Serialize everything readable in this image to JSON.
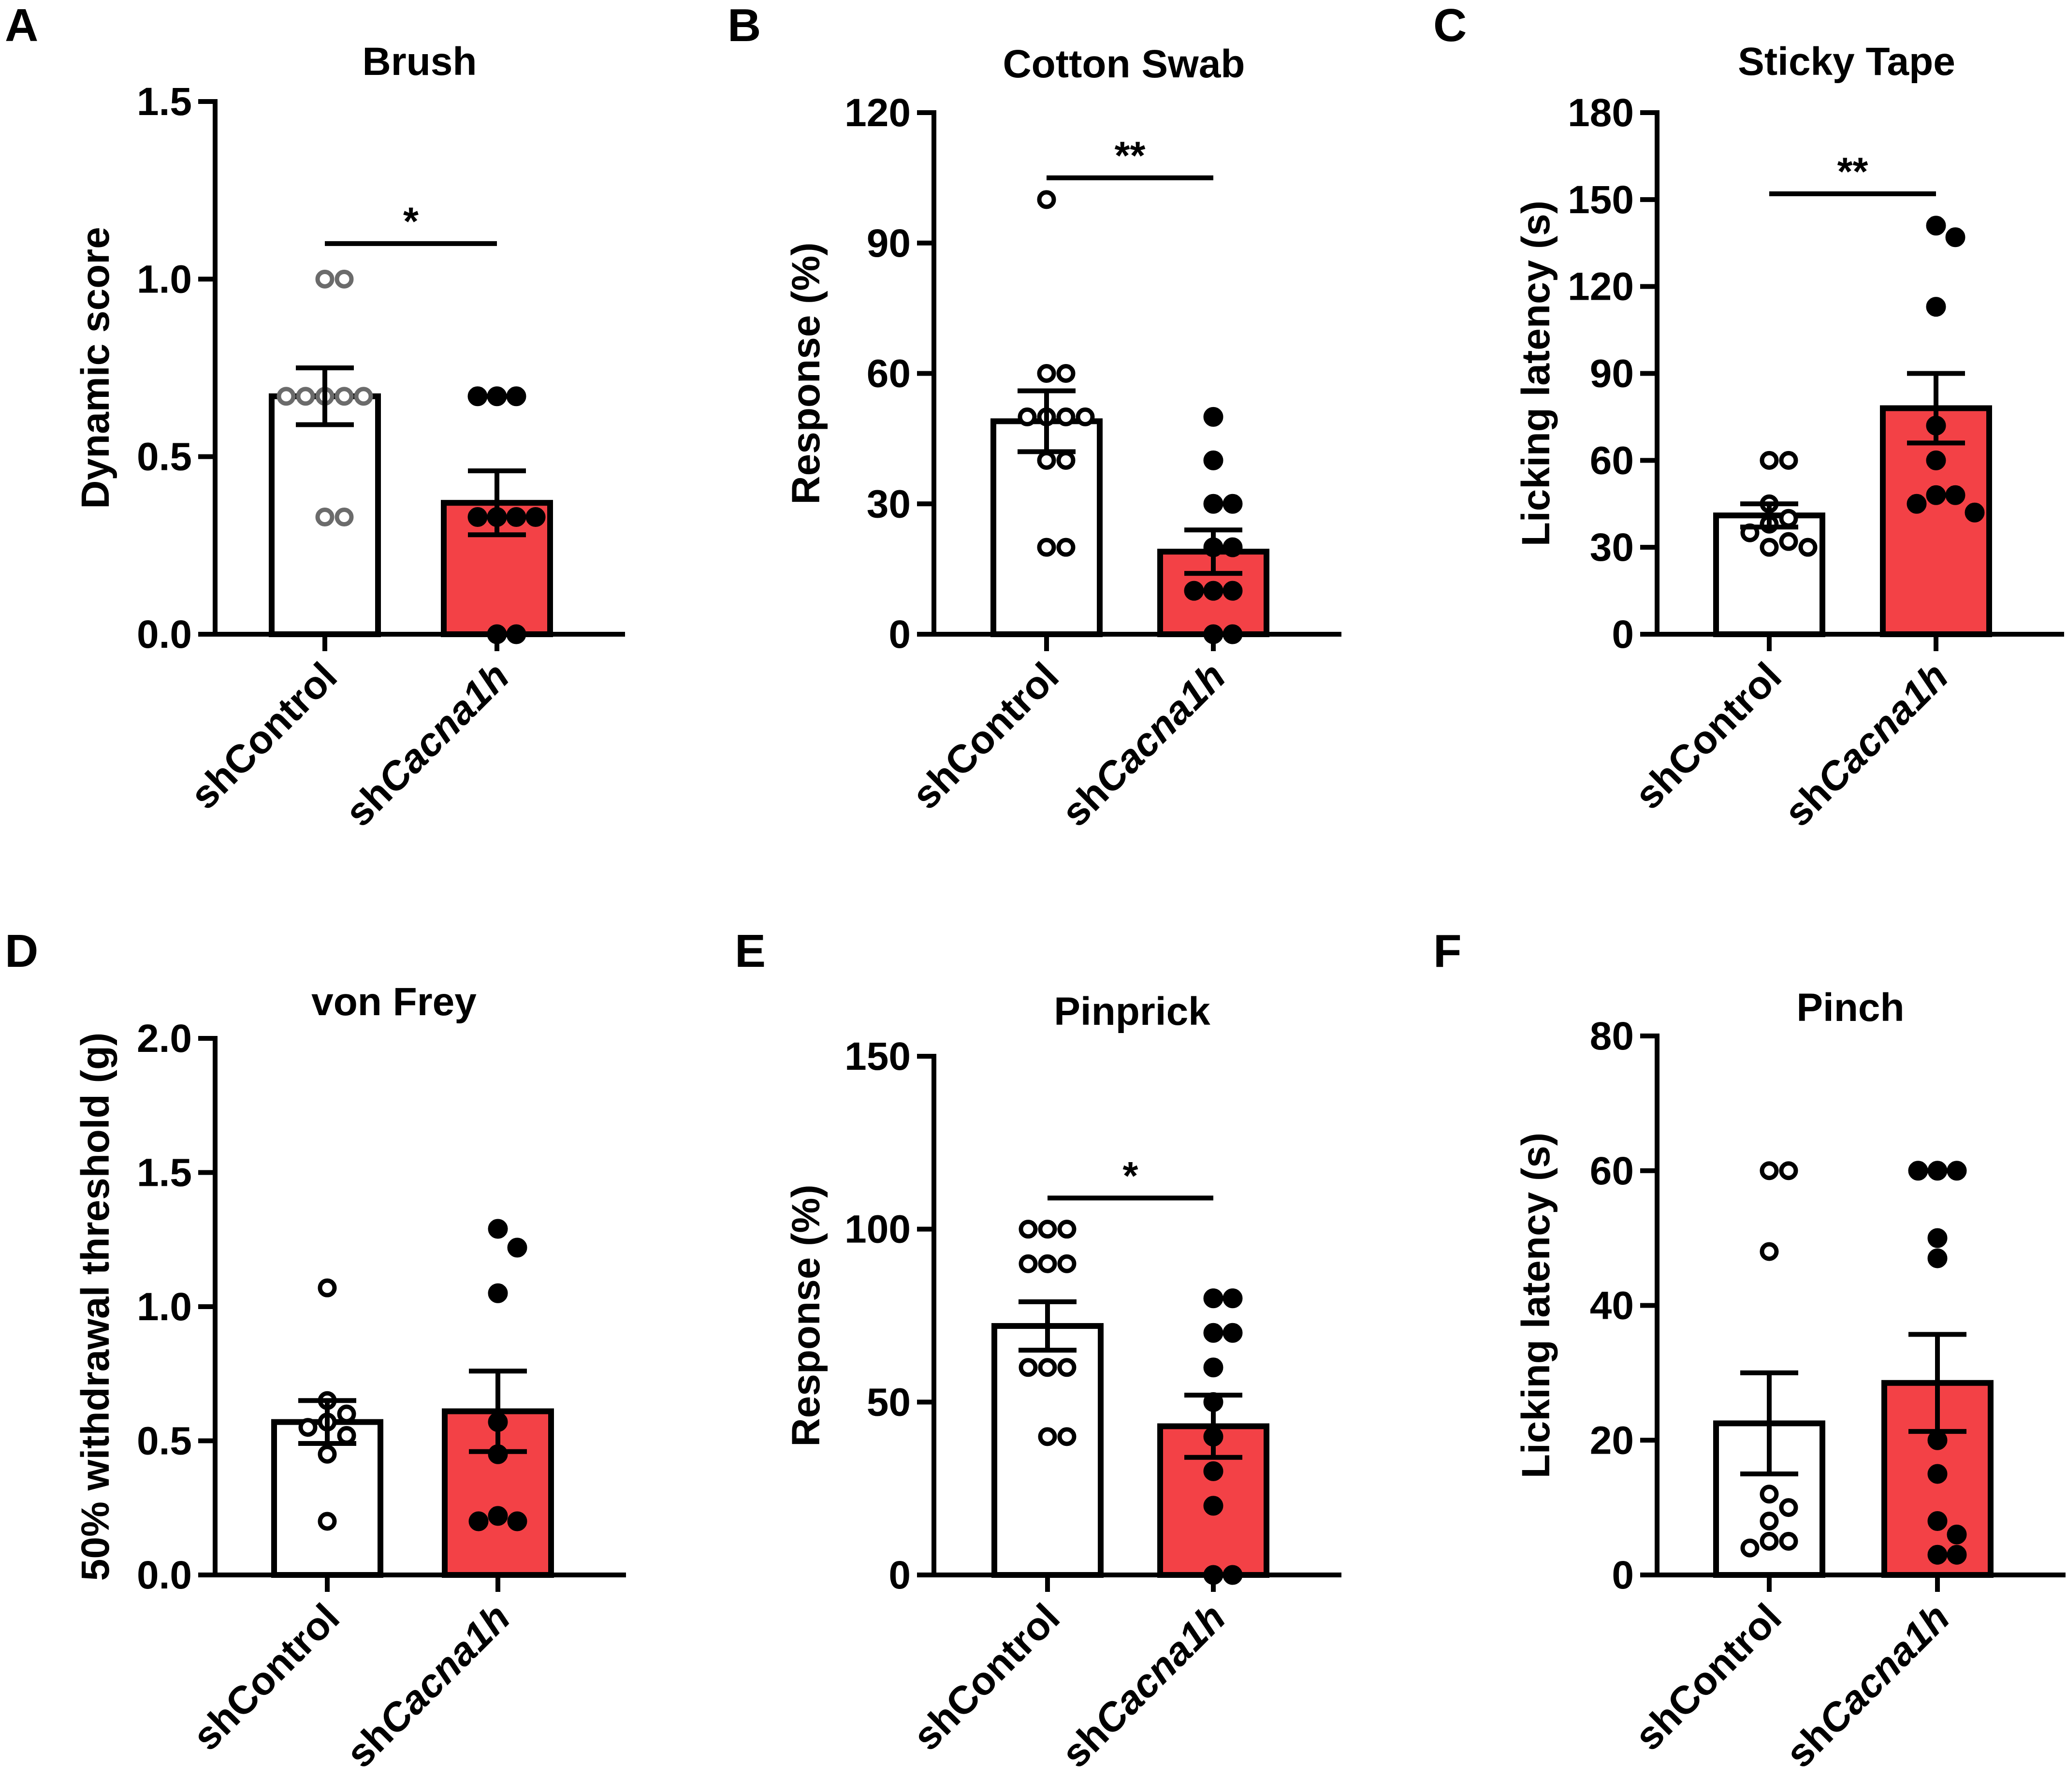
{
  "colors": {
    "control_fill": "#ffffff",
    "treatment_fill": "#f34146",
    "control_point_gray": "#6b6b6b",
    "ink": "#000000"
  },
  "chart_data": [
    {
      "letter": "A",
      "type": "bar",
      "title": "Brush",
      "ylabel": "Dynamic score",
      "ylim": [
        0,
        1.5
      ],
      "yticks": [
        "0.0",
        "0.5",
        "1.0",
        "1.5"
      ],
      "categories": [
        "shControl",
        "shCacna1h"
      ],
      "category_labels": [
        {
          "prefix": "shControl",
          "italic": ""
        },
        {
          "prefix": "sh",
          "italic": "Cacna1h"
        }
      ],
      "means": [
        0.67,
        0.37
      ],
      "sem": [
        0.08,
        0.09
      ],
      "points": [
        [
          1.0,
          1.0,
          0.67,
          0.67,
          0.67,
          0.67,
          0.67,
          0.33,
          0.33
        ],
        [
          0.67,
          0.67,
          0.67,
          0.33,
          0.33,
          0.33,
          0.33,
          0.0,
          0.0
        ]
      ],
      "control_point_color": "#6b6b6b",
      "significance": {
        "label": "*",
        "y": 1.1
      }
    },
    {
      "letter": "B",
      "type": "bar",
      "title": "Cotton Swab",
      "ylabel": "Response (%)",
      "ylim": [
        0,
        120
      ],
      "yticks": [
        "0",
        "30",
        "60",
        "90",
        "120"
      ],
      "categories": [
        "shControl",
        "shCacna1h"
      ],
      "category_labels": [
        {
          "prefix": "shControl",
          "italic": ""
        },
        {
          "prefix": "sh",
          "italic": "Cacna1h"
        }
      ],
      "means": [
        49,
        19
      ],
      "sem": [
        7,
        5
      ],
      "points": [
        [
          100,
          60,
          60,
          50,
          50,
          50,
          50,
          40,
          40,
          20,
          20
        ],
        [
          50,
          40,
          30,
          30,
          20,
          20,
          10,
          10,
          10,
          0,
          0
        ]
      ],
      "control_point_color": "#000000",
      "significance": {
        "label": "**",
        "y": 105
      }
    },
    {
      "letter": "C",
      "type": "bar",
      "title": "Sticky Tape",
      "ylabel": "Licking latency (s)",
      "ylim": [
        0,
        180
      ],
      "yticks": [
        "0",
        "30",
        "60",
        "90",
        "120",
        "150",
        "180"
      ],
      "categories": [
        "shControl",
        "shCacna1h"
      ],
      "category_labels": [
        {
          "prefix": "shControl",
          "italic": ""
        },
        {
          "prefix": "sh",
          "italic": "Cacna1h"
        }
      ],
      "means": [
        41,
        78
      ],
      "sem": [
        4,
        12
      ],
      "points": [
        [
          60,
          60,
          45,
          40,
          38,
          35,
          32,
          30,
          30
        ],
        [
          141,
          137,
          113,
          72,
          60,
          48,
          48,
          45,
          42
        ]
      ],
      "control_point_color": "#000000",
      "significance": {
        "label": "**",
        "y": 152
      }
    },
    {
      "letter": "D",
      "type": "bar",
      "title": "von Frey",
      "ylabel": "50% withdrawal threshold (g)",
      "ylim": [
        0,
        2.0
      ],
      "yticks": [
        "0.0",
        "0.5",
        "1.0",
        "1.5",
        "2.0"
      ],
      "categories": [
        "shControl",
        "shCacna1h"
      ],
      "category_labels": [
        {
          "prefix": "shControl",
          "italic": ""
        },
        {
          "prefix": "sh",
          "italic": "Cacna1h"
        }
      ],
      "means": [
        0.57,
        0.61
      ],
      "sem": [
        0.08,
        0.15
      ],
      "points": [
        [
          1.07,
          0.65,
          0.6,
          0.57,
          0.55,
          0.52,
          0.45,
          0.2
        ],
        [
          1.29,
          1.22,
          1.05,
          0.57,
          0.45,
          0.22,
          0.2,
          0.2
        ]
      ],
      "control_point_color": "#000000",
      "significance": null
    },
    {
      "letter": "E",
      "type": "bar",
      "title": "Pinprick",
      "ylabel": "Response (%)",
      "ylim": [
        0,
        150
      ],
      "yticks": [
        "0",
        "50",
        "100",
        "150"
      ],
      "categories": [
        "shControl",
        "shCacna1h"
      ],
      "category_labels": [
        {
          "prefix": "shControl",
          "italic": ""
        },
        {
          "prefix": "sh",
          "italic": "Cacna1h"
        }
      ],
      "means": [
        72,
        43
      ],
      "sem": [
        7,
        9
      ],
      "points": [
        [
          100,
          100,
          100,
          90,
          90,
          90,
          60,
          60,
          60,
          40,
          40
        ],
        [
          80,
          80,
          70,
          70,
          60,
          50,
          40,
          30,
          20,
          0,
          0
        ]
      ],
      "control_point_color": "#000000",
      "significance": {
        "label": "*",
        "y": 109
      }
    },
    {
      "letter": "F",
      "type": "bar",
      "title": "Pinch",
      "ylabel": "Licking latency (s)",
      "ylim": [
        0,
        80
      ],
      "yticks": [
        "0",
        "20",
        "40",
        "60",
        "80"
      ],
      "categories": [
        "shControl",
        "shCacna1h"
      ],
      "category_labels": [
        {
          "prefix": "shControl",
          "italic": ""
        },
        {
          "prefix": "sh",
          "italic": "Cacna1h"
        }
      ],
      "means": [
        22.5,
        28.5
      ],
      "sem": [
        7.5,
        7.2
      ],
      "points": [
        [
          60,
          60,
          48,
          12,
          10,
          8,
          5,
          5,
          4
        ],
        [
          60,
          60,
          60,
          50,
          47,
          20,
          15,
          8,
          6,
          3,
          3
        ]
      ],
      "control_point_color": "#000000",
      "significance": null
    }
  ]
}
